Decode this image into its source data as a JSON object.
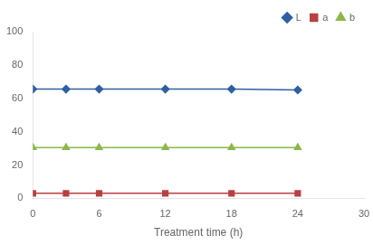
{
  "chart_data": {
    "type": "line",
    "x": [
      0,
      3,
      6,
      12,
      18,
      24
    ],
    "series": [
      {
        "name": "L",
        "color": "#2e5fa3",
        "marker": "diamond",
        "values": [
          65.5,
          65.5,
          65.5,
          65.5,
          65.5,
          65.0
        ]
      },
      {
        "name": "a",
        "color": "#b94040",
        "marker": "square",
        "values": [
          3.0,
          3.0,
          3.0,
          3.0,
          3.0,
          3.0
        ]
      },
      {
        "name": "b",
        "color": "#8ab84a",
        "marker": "triangle",
        "values": [
          30.5,
          30.5,
          30.5,
          30.5,
          30.5,
          30.5
        ]
      }
    ],
    "xlabel": "Treatment time (h)",
    "xlim": [
      0,
      30
    ],
    "ylim": [
      0,
      100
    ],
    "xticks": [
      0,
      6,
      12,
      18,
      24,
      30
    ],
    "yticks": [
      0,
      20,
      40,
      60,
      80,
      100
    ],
    "grid": false,
    "legend": "upper right"
  }
}
